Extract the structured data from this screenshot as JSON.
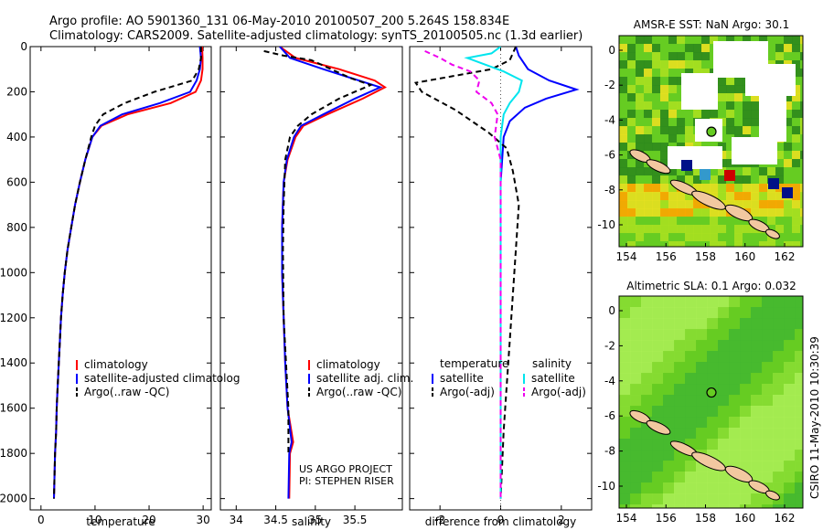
{
  "header": {
    "line1": "Argo profile: AO 5901360_131 06-May-2010 20100507_200 5.264S 158.834E",
    "line2": "Climatology: CARS2009. Satellite-adjusted climatology: synTS_20100505.nc (1.3d earlier)"
  },
  "chart_data": [
    {
      "type": "line",
      "id": "temperature",
      "xlabel": "temperature",
      "xlim": [
        -2,
        31.5
      ],
      "ylim": [
        2050,
        0
      ],
      "xticks": [
        0,
        10,
        20,
        30
      ],
      "yticks": [
        0,
        200,
        400,
        600,
        800,
        1000,
        1200,
        1400,
        1600,
        1800,
        2000
      ],
      "legend": {
        "position": "lower-right",
        "entries": [
          "climatology",
          "satellite-adjusted climatolog",
          "Argo(..raw -QC)"
        ]
      },
      "series": [
        {
          "name": "climatology",
          "color": "#ff0000",
          "dash": "solid",
          "points": [
            [
              29.8,
              0
            ],
            [
              29.9,
              50
            ],
            [
              29.9,
              100
            ],
            [
              29.6,
              150
            ],
            [
              28.6,
              200
            ],
            [
              24,
              250
            ],
            [
              16,
              300
            ],
            [
              11.2,
              350
            ],
            [
              9.5,
              400
            ],
            [
              8.2,
              500
            ],
            [
              7.2,
              600
            ],
            [
              6.3,
              700
            ],
            [
              5.6,
              800
            ],
            [
              4.9,
              900
            ],
            [
              4.4,
              1000
            ],
            [
              4.0,
              1100
            ],
            [
              3.7,
              1200
            ],
            [
              3.5,
              1300
            ],
            [
              3.3,
              1400
            ],
            [
              3.1,
              1500
            ],
            [
              2.9,
              1600
            ],
            [
              2.8,
              1700
            ],
            [
              2.6,
              1800
            ],
            [
              2.5,
              1900
            ],
            [
              2.4,
              2000
            ]
          ]
        },
        {
          "name": "satellite-adjusted climatolog",
          "color": "#0000ff",
          "dash": "solid",
          "points": [
            [
              29.4,
              0
            ],
            [
              29.6,
              50
            ],
            [
              29.4,
              100
            ],
            [
              28.8,
              150
            ],
            [
              27.6,
              200
            ],
            [
              22,
              250
            ],
            [
              15,
              300
            ],
            [
              11,
              350
            ],
            [
              9.5,
              400
            ],
            [
              8.2,
              500
            ],
            [
              7.2,
              600
            ],
            [
              6.3,
              700
            ],
            [
              5.6,
              800
            ],
            [
              4.9,
              900
            ],
            [
              4.4,
              1000
            ],
            [
              4.0,
              1100
            ],
            [
              3.7,
              1200
            ],
            [
              3.5,
              1300
            ],
            [
              3.3,
              1400
            ],
            [
              3.1,
              1500
            ],
            [
              2.9,
              1600
            ],
            [
              2.8,
              1700
            ],
            [
              2.6,
              1800
            ],
            [
              2.5,
              1900
            ],
            [
              2.4,
              2000
            ]
          ]
        },
        {
          "name": "Argo(..raw -QC)",
          "color": "#000000",
          "dash": "6,4",
          "points": [
            [
              29.6,
              0
            ],
            [
              29.6,
              50
            ],
            [
              29.2,
              100
            ],
            [
              28,
              150
            ],
            [
              21,
              200
            ],
            [
              15.5,
              250
            ],
            [
              11.5,
              300
            ],
            [
              10,
              350
            ],
            [
              9.3,
              400
            ],
            [
              8.2,
              500
            ],
            [
              7.2,
              600
            ],
            [
              6.3,
              700
            ],
            [
              5.6,
              800
            ],
            [
              4.9,
              900
            ],
            [
              4.4,
              1000
            ],
            [
              4.0,
              1100
            ],
            [
              3.7,
              1200
            ],
            [
              3.5,
              1300
            ],
            [
              3.3,
              1400
            ],
            [
              3.1,
              1500
            ],
            [
              2.9,
              1600
            ],
            [
              2.8,
              1700
            ],
            [
              2.6,
              1800
            ],
            [
              2.5,
              1900
            ],
            [
              2.4,
              2000
            ]
          ]
        }
      ]
    },
    {
      "type": "line",
      "id": "salinity",
      "xlabel": "salinity",
      "xlim": [
        33.8,
        36.1
      ],
      "ylim": [
        2050,
        0
      ],
      "xticks": [
        34,
        34.5,
        35,
        35.5
      ],
      "footnote": [
        "US ARGO PROJECT",
        "PI: STEPHEN RISER"
      ],
      "legend": {
        "position": "lower-right",
        "entries": [
          "climatology",
          "satellite adj. clim.",
          "Argo(..raw -QC)"
        ]
      },
      "series": [
        {
          "name": "climatology",
          "color": "#ff0000",
          "dash": "solid",
          "points": [
            [
              34.55,
              0
            ],
            [
              34.75,
              50
            ],
            [
              35.3,
              100
            ],
            [
              35.75,
              150
            ],
            [
              35.88,
              180
            ],
            [
              35.6,
              230
            ],
            [
              35.15,
              300
            ],
            [
              34.85,
              350
            ],
            [
              34.75,
              400
            ],
            [
              34.65,
              500
            ],
            [
              34.6,
              600
            ],
            [
              34.58,
              800
            ],
            [
              34.58,
              1000
            ],
            [
              34.6,
              1200
            ],
            [
              34.62,
              1400
            ],
            [
              34.65,
              1600
            ],
            [
              34.72,
              1750
            ],
            [
              34.68,
              1800
            ],
            [
              34.67,
              2000
            ]
          ]
        },
        {
          "name": "satellite adj. clim.",
          "color": "#0000ff",
          "dash": "solid",
          "points": [
            [
              34.55,
              0
            ],
            [
              34.68,
              50
            ],
            [
              35.1,
              100
            ],
            [
              35.55,
              150
            ],
            [
              35.82,
              180
            ],
            [
              35.5,
              230
            ],
            [
              35.1,
              300
            ],
            [
              34.82,
              350
            ],
            [
              34.73,
              400
            ],
            [
              34.64,
              500
            ],
            [
              34.6,
              600
            ],
            [
              34.58,
              800
            ],
            [
              34.58,
              1000
            ],
            [
              34.6,
              1200
            ],
            [
              34.62,
              1400
            ],
            [
              34.65,
              1600
            ],
            [
              34.7,
              1750
            ],
            [
              34.67,
              1800
            ],
            [
              34.66,
              2000
            ]
          ]
        },
        {
          "name": "Argo(..raw -QC)",
          "color": "#000000",
          "dash": "6,4",
          "points": [
            [
              34.35,
              20
            ],
            [
              34.6,
              40
            ],
            [
              34.95,
              60
            ],
            [
              35.2,
              100
            ],
            [
              35.45,
              140
            ],
            [
              35.7,
              170
            ],
            [
              35.3,
              230
            ],
            [
              34.95,
              300
            ],
            [
              34.78,
              350
            ],
            [
              34.68,
              400
            ],
            [
              34.62,
              500
            ],
            [
              34.6,
              700
            ],
            [
              34.59,
              900
            ],
            [
              34.6,
              1200
            ],
            [
              34.63,
              1400
            ],
            [
              34.66,
              1600
            ],
            [
              34.66,
              1800
            ]
          ]
        }
      ]
    },
    {
      "type": "line",
      "id": "difference",
      "xlabel": "difference from climatology",
      "xlim": [
        -3.0,
        3.0
      ],
      "ylim": [
        2050,
        0
      ],
      "xticks": [
        -2,
        0,
        2
      ],
      "legend_temperature": {
        "title": "temperature",
        "entries": [
          "satellite",
          "Argo(-adj)"
        ]
      },
      "legend_salinity": {
        "title": "salinity",
        "entries": [
          "satellite",
          "Argo(-adj)"
        ]
      },
      "series": [
        {
          "name": "satellite",
          "group": "temperature",
          "color": "#0000ff",
          "dash": "solid",
          "points": [
            [
              0.5,
              0
            ],
            [
              0.6,
              40
            ],
            [
              0.9,
              100
            ],
            [
              1.6,
              150
            ],
            [
              2.5,
              190
            ],
            [
              1.5,
              230
            ],
            [
              0.8,
              270
            ],
            [
              0.3,
              330
            ],
            [
              0.1,
              400
            ],
            [
              0.0,
              600
            ],
            [
              0.0,
              1000
            ],
            [
              0.0,
              1500
            ],
            [
              0.0,
              2000
            ]
          ]
        },
        {
          "name": "Argo(-adj)",
          "group": "temperature",
          "color": "#000000",
          "dash": "6,4",
          "points": [
            [
              0.5,
              0
            ],
            [
              0.3,
              60
            ],
            [
              -0.3,
              100
            ],
            [
              -2.8,
              160
            ],
            [
              -2.6,
              200
            ],
            [
              -1.5,
              280
            ],
            [
              -0.4,
              380
            ],
            [
              0.2,
              450
            ],
            [
              0.4,
              550
            ],
            [
              0.6,
              700
            ],
            [
              0.5,
              900
            ],
            [
              0.4,
              1100
            ],
            [
              0.3,
              1300
            ],
            [
              0.2,
              1500
            ],
            [
              0.1,
              1700
            ],
            [
              0.0,
              2000
            ]
          ]
        },
        {
          "name": "satellite",
          "group": "salinity",
          "color": "#00e5ee",
          "dash": "solid",
          "points": [
            [
              0.0,
              0
            ],
            [
              -0.3,
              30
            ],
            [
              -1.1,
              50
            ],
            [
              -0.5,
              80
            ],
            [
              0.1,
              110
            ],
            [
              0.7,
              150
            ],
            [
              0.6,
              200
            ],
            [
              0.3,
              250
            ],
            [
              0.1,
              300
            ],
            [
              0.0,
              400
            ],
            [
              0.0,
              1000
            ],
            [
              0.0,
              1500
            ],
            [
              0.0,
              2000
            ]
          ]
        },
        {
          "name": "Argo(-adj)",
          "group": "salinity",
          "color": "#ee00ee",
          "dash": "6,4",
          "points": [
            [
              -2.5,
              20
            ],
            [
              -2.0,
              50
            ],
            [
              -1.6,
              80
            ],
            [
              -1.0,
              110
            ],
            [
              -0.7,
              150
            ],
            [
              -0.8,
              200
            ],
            [
              -0.3,
              250
            ],
            [
              -0.1,
              300
            ],
            [
              -0.2,
              400
            ],
            [
              0.0,
              500
            ],
            [
              0.0,
              1000
            ],
            [
              0.0,
              2000
            ]
          ]
        }
      ]
    }
  ],
  "maps": [
    {
      "title": "AMSR-E SST: NaN Argo: 30.1",
      "xticks": [
        "154",
        "156",
        "158",
        "160",
        "162"
      ],
      "yticks": [
        "0",
        "-2",
        "-4",
        "-6",
        "-8",
        "-10"
      ],
      "colors": [
        "#2d8a1c",
        "#66cc22",
        "#a8e020",
        "#e8e020",
        "#ffa500",
        "#ff6600",
        "#3399cc",
        "#001188",
        "#cc0000"
      ]
    },
    {
      "title": "Altimetric SLA: 0.1 Argo: 0.032",
      "xticks": [
        "154",
        "156",
        "158",
        "160",
        "162"
      ],
      "yticks": [
        "0",
        "-2",
        "-4",
        "-6",
        "-8",
        "-10"
      ],
      "colors": [
        "#44b830",
        "#66cc22",
        "#88dd33",
        "#aaee55"
      ]
    }
  ],
  "side_label": "CSIRO 11-May-2010 10:30:39"
}
